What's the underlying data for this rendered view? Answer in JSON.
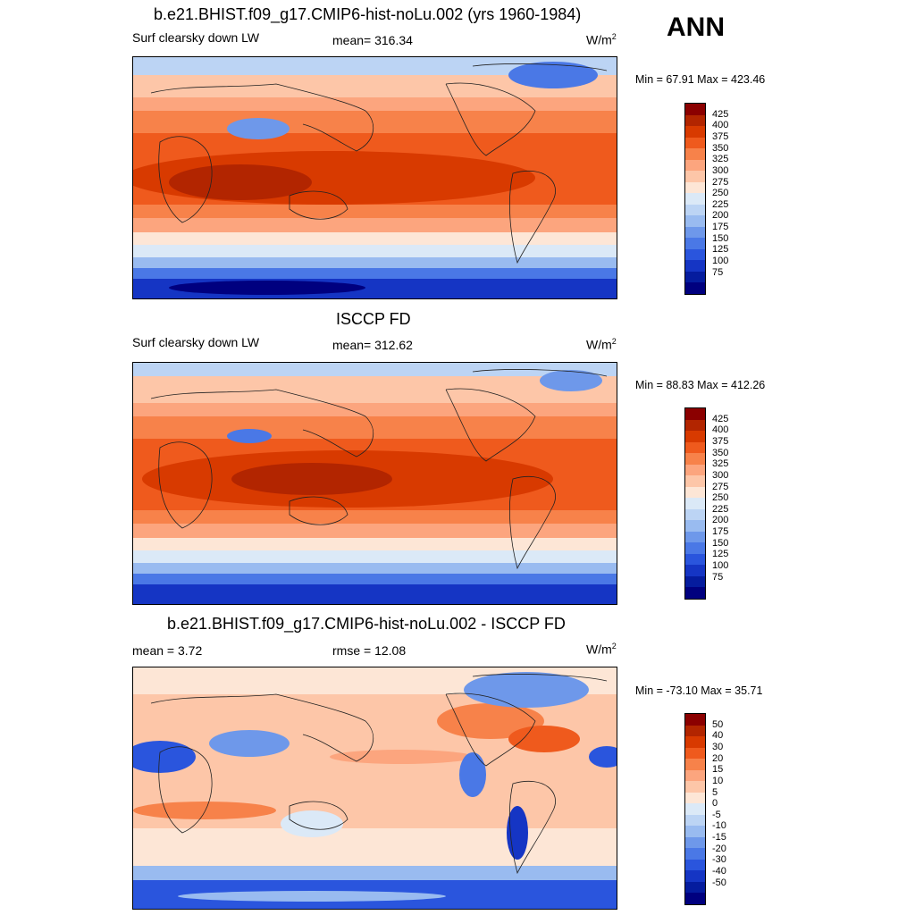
{
  "figure_label": "ANN",
  "units_base": "W/m",
  "units_exp": "2",
  "panels": [
    {
      "title": "b.e21.BHIST.f09_g17.CMIP6-hist-noLu.002 (yrs 1960-1984)",
      "left_label": "Surf clearsky down LW",
      "center_label": "mean= 316.34",
      "minmax": "Min =  67.91 Max = 423.46",
      "colorbar_key": "abs"
    },
    {
      "title": "ISCCP FD",
      "left_label": "Surf clearsky down LW",
      "center_label": "mean= 312.62",
      "minmax": "Min =  88.83 Max = 412.26",
      "colorbar_key": "abs"
    },
    {
      "title": "b.e21.BHIST.f09_g17.CMIP6-hist-noLu.002 - ISCCP FD",
      "left_label": "mean =   3.72",
      "center_label": "rmse =  12.08",
      "minmax": "Min = -73.10 Max =  35.71",
      "colorbar_key": "diff"
    }
  ],
  "colorbars": {
    "abs": {
      "colors": [
        "#8b0000",
        "#b22500",
        "#d83a00",
        "#ef5a1d",
        "#f7824a",
        "#fca57e",
        "#fdc6a8",
        "#fde6d6",
        "#dbe9f7",
        "#bcd4f4",
        "#99bbf0",
        "#6e98ea",
        "#4a78e6",
        "#2a55dd",
        "#1535c4",
        "#051c9e",
        "#00007f"
      ],
      "labels": [
        "425",
        "400",
        "375",
        "350",
        "325",
        "300",
        "275",
        "250",
        "225",
        "200",
        "175",
        "150",
        "125",
        "100",
        "75"
      ]
    },
    "diff": {
      "colors": [
        "#8b0000",
        "#b22500",
        "#d83a00",
        "#ef5a1d",
        "#f7824a",
        "#fca57e",
        "#fdc6a8",
        "#fde6d6",
        "#dbe9f7",
        "#bcd4f4",
        "#99bbf0",
        "#6e98ea",
        "#4a78e6",
        "#2a55dd",
        "#1535c4",
        "#051c9e",
        "#00007f"
      ],
      "labels": [
        "50",
        "40",
        "30",
        "20",
        "15",
        "10",
        "5",
        "0",
        "-5",
        "-10",
        "-15",
        "-20",
        "-30",
        "-40",
        "-50"
      ]
    }
  }
}
